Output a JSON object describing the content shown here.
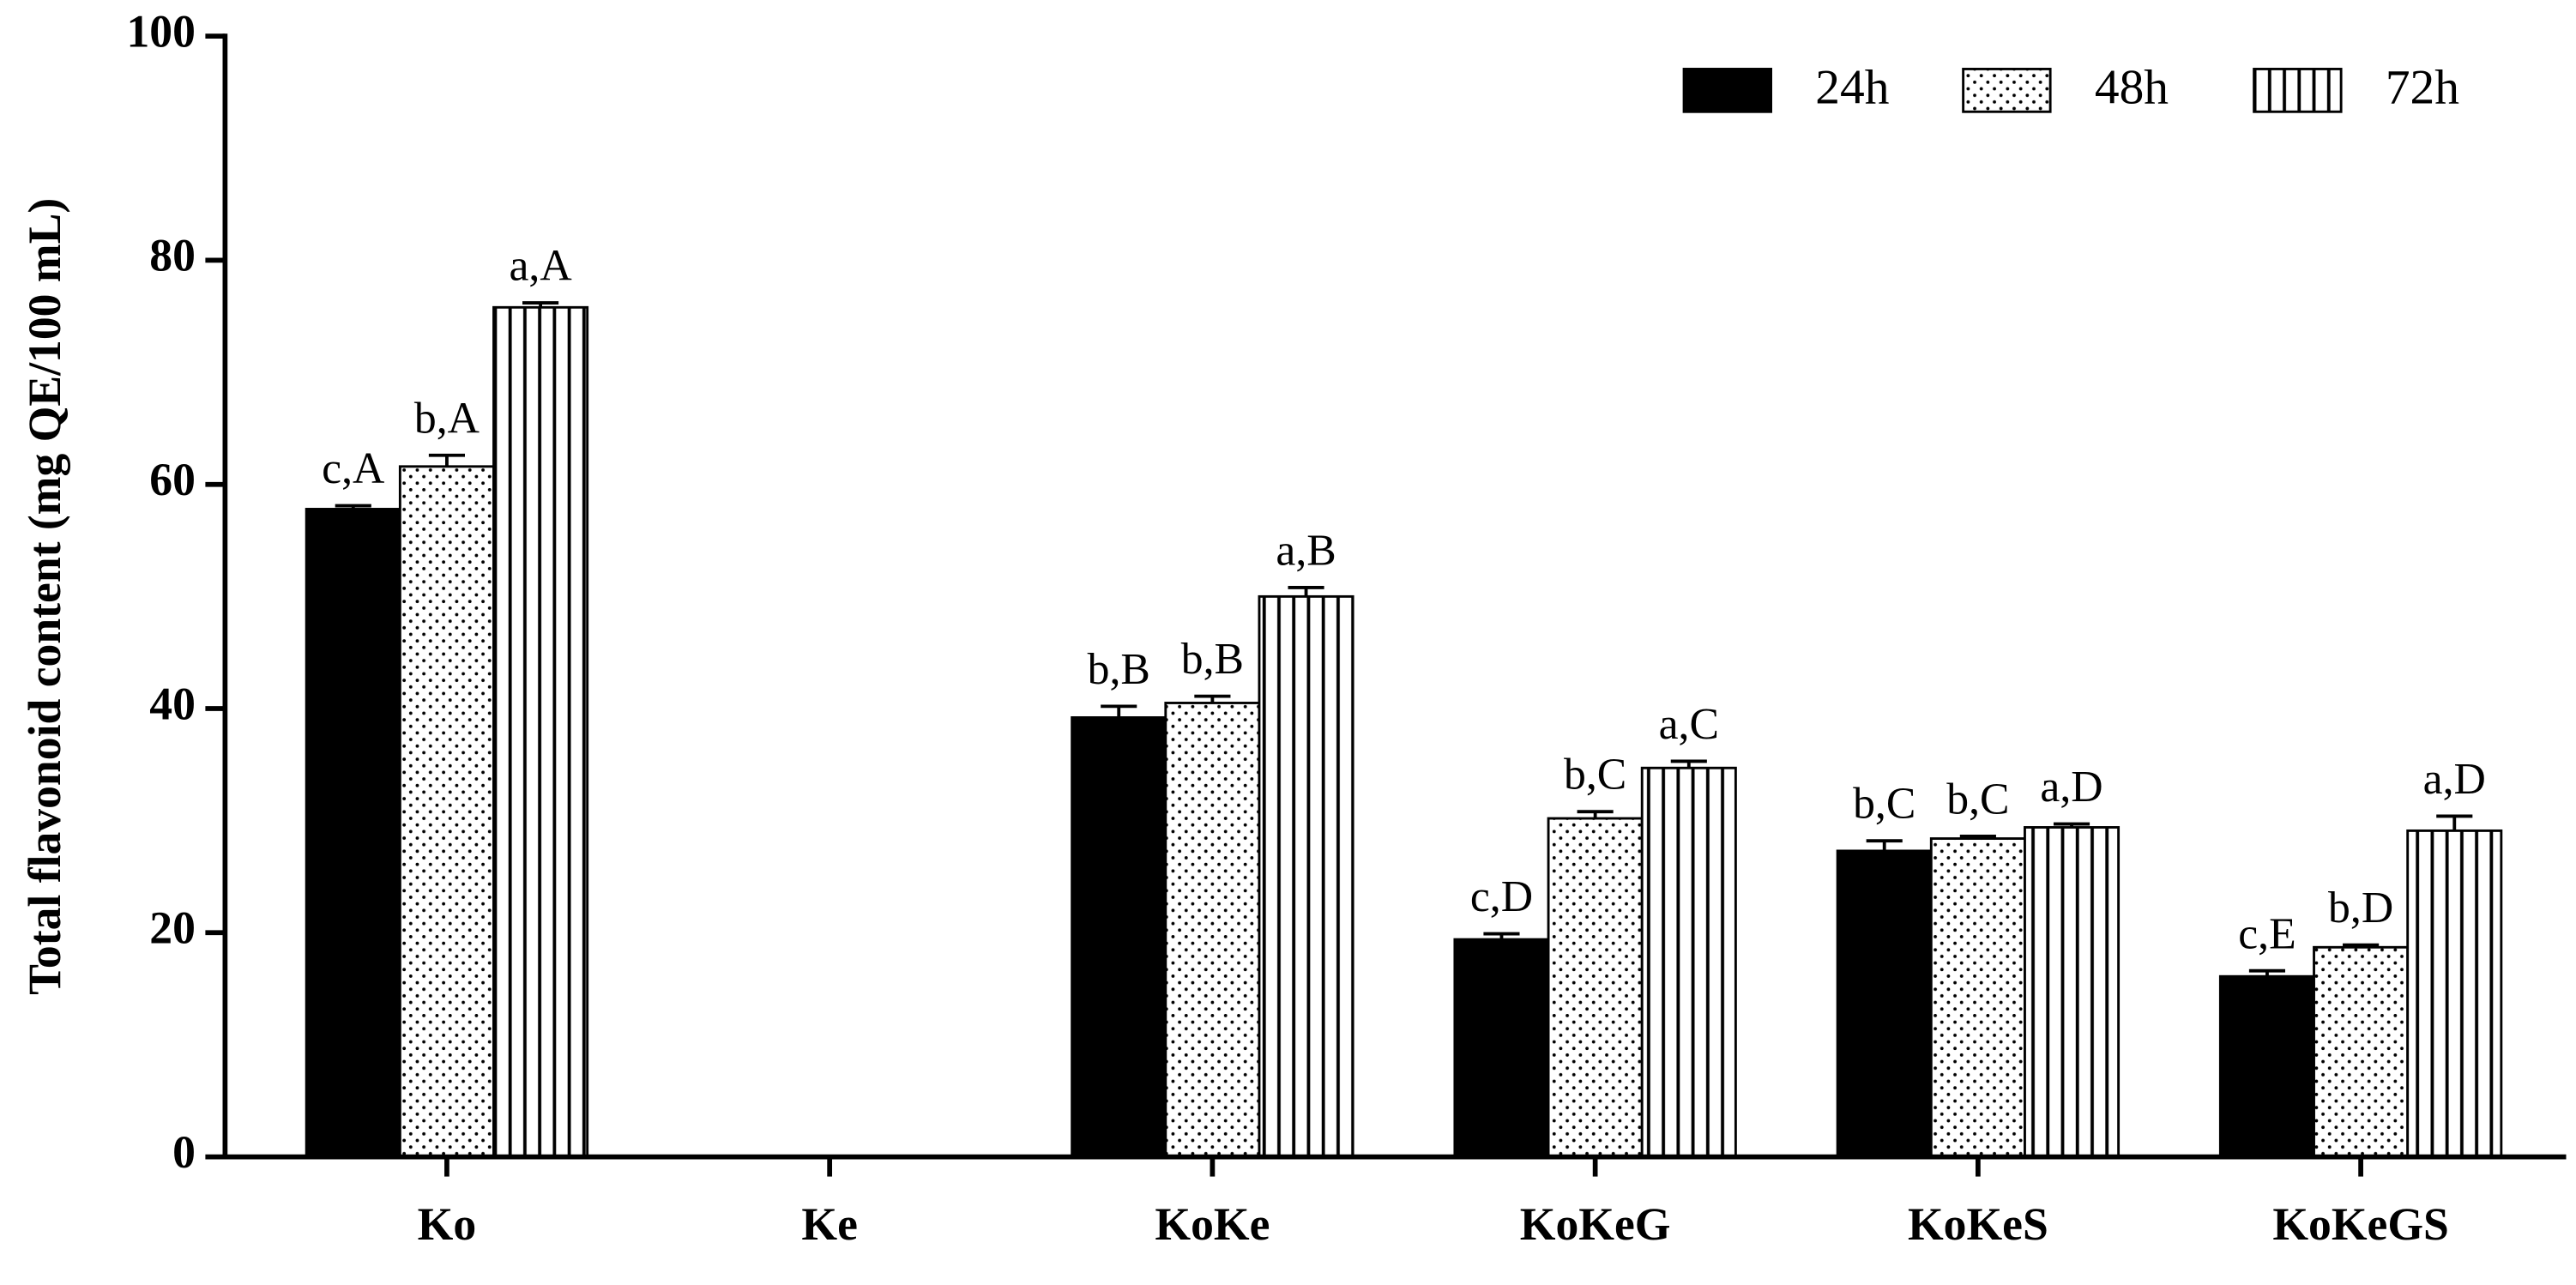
{
  "chart_data": {
    "type": "bar",
    "ylabel": "Total flavonoid content (mg QE/100 mL)",
    "categories": [
      "Ko",
      "Ke",
      "KoKe",
      "KoKeG",
      "KoKeS",
      "KoKeGS"
    ],
    "series": [
      {
        "name": "24h",
        "color": "#000000",
        "pattern": "solid",
        "values": [
          57.8,
          null,
          39.2,
          19.4,
          27.3,
          16.1
        ],
        "errors": [
          0.3,
          null,
          1.0,
          0.5,
          0.9,
          0.5
        ],
        "value_labels": [
          "c,A",
          null,
          "b,B",
          "c,D",
          "b,C",
          "c,E"
        ]
      },
      {
        "name": "48h",
        "color": "#000000",
        "pattern": "dots",
        "values": [
          61.6,
          null,
          40.5,
          30.2,
          28.4,
          18.7
        ],
        "errors": [
          1.0,
          null,
          0.6,
          0.6,
          0.2,
          0.2
        ],
        "value_labels": [
          "b,A",
          null,
          "b,B",
          "b,C",
          "b,C",
          "b,D"
        ]
      },
      {
        "name": "72h",
        "color": "#000000",
        "pattern": "stripes",
        "values": [
          75.8,
          null,
          50.0,
          34.7,
          29.4,
          29.1
        ],
        "errors": [
          0.4,
          null,
          0.8,
          0.6,
          0.3,
          1.3
        ],
        "value_labels": [
          "a,A",
          null,
          "a,B",
          "a,C",
          "a,D",
          "a,D"
        ]
      }
    ],
    "ylim": [
      0,
      100
    ],
    "yticks": [
      0,
      20,
      40,
      60,
      80,
      100
    ],
    "legend": "top-right"
  }
}
